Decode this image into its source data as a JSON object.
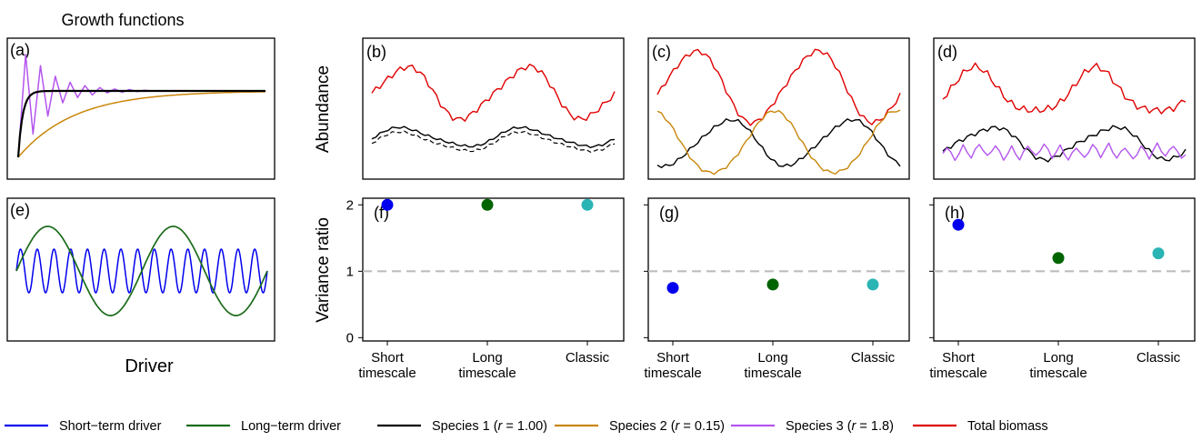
{
  "chart_data": {
    "type": "line",
    "title": "Growth functions",
    "legend": {
      "placement": "bottom",
      "items": [
        {
          "label": "Short−term driver",
          "color": "#0000ee"
        },
        {
          "label": "Long−term driver",
          "color": "#1a6b1a"
        },
        {
          "label_pre": "Species 1 (",
          "label_var": "r",
          "label_post": " = 1.00)",
          "color": "#000000"
        },
        {
          "label_pre": "Species 2 (",
          "label_var": "r",
          "label_post": " = 0.15)",
          "color": "#c8860a"
        },
        {
          "label_pre": "Species 3 (",
          "label_var": "r",
          "label_post": " = 1.8)",
          "color": "#b455ee"
        },
        {
          "label": "Total biomass",
          "color": "#e00000"
        }
      ]
    },
    "growth_panel": {
      "letter": "(a)",
      "series": [
        {
          "name": "Species 1",
          "r": 1.0,
          "color": "#000000"
        },
        {
          "name": "Species 2",
          "r": 0.15,
          "color": "#c8860a"
        },
        {
          "name": "Species 3",
          "r": 1.8,
          "color": "#b455ee"
        }
      ]
    },
    "driver_panel": {
      "letter": "(e)",
      "xlabel": "Driver",
      "series": [
        {
          "name": "Short-term driver",
          "color": "#0000ee",
          "cycles": 15
        },
        {
          "name": "Long-term driver",
          "color": "#1a6b1a",
          "cycles": 2
        }
      ]
    },
    "abundance_panels": {
      "ylabel": "Abundance",
      "panels": [
        {
          "letter": "(b)",
          "series": [
            "Total biomass",
            "Species 1",
            "Species 1 (dashed)"
          ]
        },
        {
          "letter": "(c)",
          "series": [
            "Total biomass",
            "Species 1",
            "Species 2"
          ]
        },
        {
          "letter": "(d)",
          "series": [
            "Total biomass",
            "Species 1",
            "Species 3"
          ]
        }
      ]
    },
    "variance_panels": {
      "ylabel": "Variance ratio",
      "ylim": [
        -0.05,
        2.1
      ],
      "yticks": [
        "0",
        "1",
        "2"
      ],
      "reference_line": 1,
      "categories": [
        "Short timescale",
        "Long timescale",
        "Classic"
      ],
      "category_labels": [
        [
          "Short",
          "timescale"
        ],
        [
          "Long",
          "timescale"
        ],
        [
          "Classic"
        ]
      ],
      "point_colors": [
        "#0000ee",
        "#006400",
        "#2ab4b4"
      ],
      "panels": [
        {
          "letter": "(f)",
          "values": [
            2.0,
            2.0,
            2.0
          ]
        },
        {
          "letter": "(g)",
          "values": [
            0.75,
            0.8,
            0.8
          ]
        },
        {
          "letter": "(h)",
          "values": [
            1.7,
            1.2,
            1.27
          ]
        }
      ]
    }
  }
}
